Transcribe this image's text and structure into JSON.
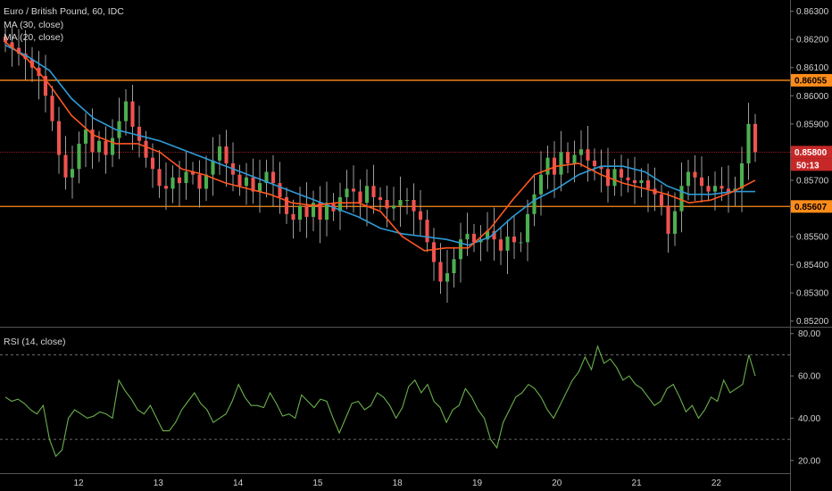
{
  "header": {
    "title": "Euro / British Pound, 60, IDC",
    "ma30_label": "MA (30, close)",
    "ma20_label": "MA (20, close)",
    "rsi_label": "RSI (14, close)"
  },
  "colors": {
    "up": "#4caf50",
    "down": "#ef5350",
    "wick": "#9e9e9e",
    "ma30": "#2e9bd6",
    "ma20": "#ff5722",
    "hline": "#ff8c1a",
    "price_line": "#c62828",
    "rsi": "#6ab04c",
    "grid": "#2e2e2e"
  },
  "chart_data": [
    {
      "type": "candlestick",
      "title": "Euro / British Pound, 60, IDC",
      "x_ticks": [
        "12",
        "13",
        "14",
        "15",
        "18",
        "19",
        "20",
        "21",
        "22"
      ],
      "y_ticks": [
        "0.86300",
        "0.86200",
        "0.86100",
        "0.86000",
        "0.85900",
        "0.85800",
        "0.85700",
        "0.85600",
        "0.85500",
        "0.85400",
        "0.85300",
        "0.85200"
      ],
      "ylim": [
        0.8518,
        0.8634
      ],
      "horizontal_lines": [
        {
          "value": 0.86055,
          "label": "0.86055"
        },
        {
          "value": 0.85607,
          "label": "0.85607"
        }
      ],
      "last_price": {
        "value": 0.858,
        "label": "0.85800",
        "countdown": "50:13"
      },
      "series": [
        {
          "name": "MA (30, close)",
          "points": [
            [
              0,
              0.8618
            ],
            [
              12,
              0.8614
            ],
            [
              24,
              0.8609
            ],
            [
              36,
              0.8599
            ],
            [
              48,
              0.8592
            ],
            [
              60,
              0.8588
            ],
            [
              72,
              0.8586
            ],
            [
              84,
              0.8584
            ],
            [
              96,
              0.8581
            ],
            [
              108,
              0.8578
            ],
            [
              120,
              0.8575
            ],
            [
              132,
              0.8572
            ],
            [
              144,
              0.8569
            ],
            [
              156,
              0.8566
            ],
            [
              168,
              0.8563
            ],
            [
              180,
              0.856
            ],
            [
              192,
              0.8557
            ],
            [
              204,
              0.8553
            ],
            [
              216,
              0.8551
            ],
            [
              228,
              0.855
            ],
            [
              240,
              0.8549
            ],
            [
              252,
              0.8547
            ],
            [
              264,
              0.855
            ],
            [
              276,
              0.8557
            ],
            [
              288,
              0.8563
            ],
            [
              300,
              0.8567
            ],
            [
              312,
              0.8572
            ],
            [
              324,
              0.8575
            ],
            [
              336,
              0.8575
            ],
            [
              348,
              0.8573
            ],
            [
              360,
              0.8568
            ],
            [
              372,
              0.8565
            ],
            [
              384,
              0.8565
            ],
            [
              396,
              0.8566
            ],
            [
              408,
              0.8566
            ]
          ]
        },
        {
          "name": "MA (20, close)",
          "points": [
            [
              0,
              0.8619
            ],
            [
              12,
              0.8613
            ],
            [
              24,
              0.8604
            ],
            [
              36,
              0.8593
            ],
            [
              48,
              0.8586
            ],
            [
              60,
              0.8583
            ],
            [
              72,
              0.8583
            ],
            [
              84,
              0.858
            ],
            [
              96,
              0.8574
            ],
            [
              108,
              0.8572
            ],
            [
              120,
              0.8569
            ],
            [
              132,
              0.8567
            ],
            [
              144,
              0.8565
            ],
            [
              156,
              0.8562
            ],
            [
              168,
              0.8561
            ],
            [
              180,
              0.8562
            ],
            [
              192,
              0.8562
            ],
            [
              204,
              0.8559
            ],
            [
              216,
              0.855
            ],
            [
              228,
              0.8545
            ],
            [
              240,
              0.8546
            ],
            [
              252,
              0.8546
            ],
            [
              264,
              0.8553
            ],
            [
              276,
              0.8563
            ],
            [
              288,
              0.8572
            ],
            [
              300,
              0.8575
            ],
            [
              312,
              0.8576
            ],
            [
              324,
              0.8572
            ],
            [
              336,
              0.8569
            ],
            [
              348,
              0.8567
            ],
            [
              360,
              0.8565
            ],
            [
              372,
              0.8562
            ],
            [
              384,
              0.8563
            ],
            [
              396,
              0.8566
            ],
            [
              408,
              0.857
            ]
          ]
        }
      ],
      "candles_close": [
        0.8619,
        0.8617,
        0.8615,
        0.8613,
        0.861,
        0.8607,
        0.86,
        0.8591,
        0.8579,
        0.8571,
        0.8574,
        0.8583,
        0.8588,
        0.858,
        0.8584,
        0.8579,
        0.8585,
        0.8591,
        0.8598,
        0.8589,
        0.8584,
        0.8578,
        0.8574,
        0.8568,
        0.8567,
        0.8571,
        0.8569,
        0.8573,
        0.8572,
        0.8567,
        0.8572,
        0.8577,
        0.8582,
        0.8576,
        0.8572,
        0.8568,
        0.8571,
        0.8566,
        0.8569,
        0.8573,
        0.8569,
        0.8564,
        0.8558,
        0.8556,
        0.8561,
        0.8557,
        0.8562,
        0.8556,
        0.8562,
        0.8559,
        0.8564,
        0.8567,
        0.8566,
        0.8562,
        0.8568,
        0.8564,
        0.8563,
        0.856,
        0.8561,
        0.8563,
        0.8563,
        0.8559,
        0.8556,
        0.8548,
        0.8541,
        0.8534,
        0.8537,
        0.8542,
        0.8549,
        0.8551,
        0.8548,
        0.8549,
        0.8552,
        0.8549,
        0.8545,
        0.855,
        0.8548,
        0.8548,
        0.8558,
        0.8565,
        0.8572,
        0.8578,
        0.8572,
        0.858,
        0.8576,
        0.8579,
        0.8581,
        0.8577,
        0.8575,
        0.8574,
        0.8568,
        0.8574,
        0.8571,
        0.857,
        0.8569,
        0.857,
        0.8567,
        0.8565,
        0.8561,
        0.8551,
        0.8559,
        0.8568,
        0.8573,
        0.8571,
        0.8568,
        0.8566,
        0.8568,
        0.8567,
        0.8566,
        0.8567,
        0.8576,
        0.859,
        0.858
      ],
      "xlabel": "",
      "ylabel": ""
    },
    {
      "type": "line",
      "title": "RSI (14, close)",
      "y_ticks": [
        "80.00",
        "60.00",
        "40.00",
        "20.00"
      ],
      "ylim": [
        14,
        82
      ],
      "bands": [
        70,
        30
      ],
      "series": [
        {
          "name": "RSI (14, close)",
          "values": [
            50,
            48,
            49,
            47,
            44,
            42,
            46,
            30,
            22,
            25,
            40,
            44,
            42,
            40,
            41,
            43,
            42,
            40,
            58,
            53,
            49,
            44,
            42,
            46,
            40,
            34,
            34,
            38,
            44,
            48,
            52,
            47,
            44,
            38,
            40,
            42,
            48,
            56,
            50,
            46,
            46,
            45,
            52,
            47,
            41,
            42,
            40,
            51,
            48,
            45,
            49,
            48,
            40,
            33,
            40,
            47,
            48,
            44,
            46,
            52,
            50,
            46,
            40,
            45,
            55,
            58,
            52,
            56,
            48,
            45,
            38,
            44,
            46,
            54,
            50,
            44,
            40,
            30,
            26,
            38,
            44,
            50,
            52,
            56,
            54,
            50,
            44,
            40,
            46,
            52,
            58,
            62,
            69,
            63,
            74,
            66,
            68,
            64,
            58,
            60,
            56,
            54,
            50,
            46,
            48,
            54,
            56,
            50,
            43,
            46,
            40,
            44,
            50,
            48,
            58,
            52,
            54,
            56,
            70,
            60
          ]
        }
      ],
      "xlabel": "",
      "ylabel": ""
    }
  ]
}
